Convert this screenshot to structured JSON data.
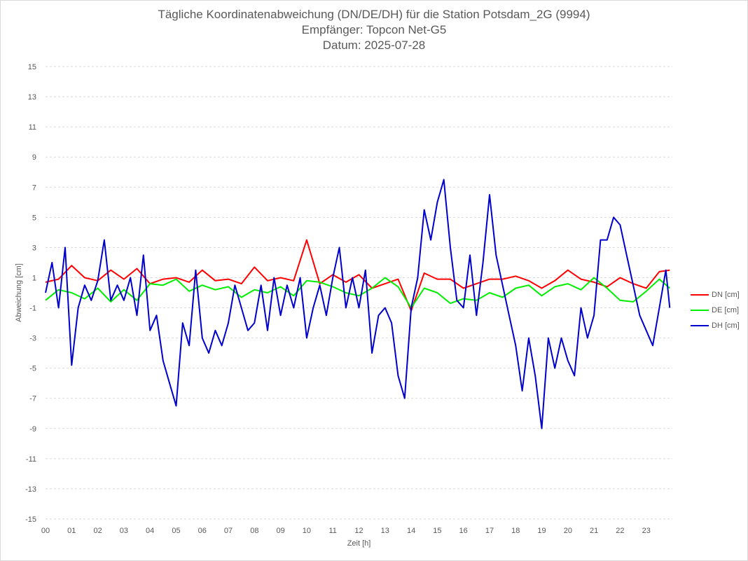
{
  "colors": {
    "DN": "#ff0000",
    "DE": "#00ee00",
    "DH": "#0000cc",
    "grid": "#d9d9d9",
    "text": "#595959"
  },
  "chart_data": {
    "type": "line",
    "title": "Tägliche Koordinatenabweichung (DN/DE/DH) für die Station Potsdam_2G (9994)",
    "subtitle": [
      "Empfänger: Topcon Net-G5",
      "Datum: 2025-07-28"
    ],
    "xlabel": "Zeit [h]",
    "ylabel": "Abweichung [cm]",
    "xlim": [
      0,
      24
    ],
    "ylim": [
      -15,
      15
    ],
    "x_ticks": [
      "00",
      "01",
      "02",
      "03",
      "04",
      "05",
      "06",
      "07",
      "08",
      "09",
      "10",
      "11",
      "12",
      "13",
      "14",
      "15",
      "16",
      "17",
      "18",
      "19",
      "20",
      "21",
      "22",
      "23"
    ],
    "y_ticks": [
      15,
      13,
      11,
      9,
      7,
      5,
      3,
      1,
      -1,
      -3,
      -5,
      -7,
      -9,
      -11,
      -13,
      -15
    ],
    "grid": true,
    "legend_position": "right",
    "series": [
      {
        "name": "DN [cm]",
        "color_key": "DN",
        "x": [
          0,
          0.5,
          1,
          1.5,
          2,
          2.5,
          3,
          3.5,
          4,
          4.5,
          5,
          5.5,
          6,
          6.5,
          7,
          7.5,
          8,
          8.5,
          9,
          9.5,
          10,
          10.5,
          11,
          11.5,
          12,
          12.5,
          13,
          13.5,
          14,
          14.5,
          15,
          15.5,
          16,
          16.5,
          17,
          17.5,
          18,
          18.5,
          19,
          19.5,
          20,
          20.5,
          21,
          21.5,
          22,
          22.5,
          23,
          23.5,
          23.9
        ],
        "values": [
          0.7,
          0.9,
          1.8,
          1.0,
          0.8,
          1.5,
          0.9,
          1.6,
          0.6,
          0.9,
          1.0,
          0.7,
          1.5,
          0.8,
          0.9,
          0.6,
          1.7,
          0.8,
          1.0,
          0.8,
          3.5,
          0.6,
          1.2,
          0.7,
          1.2,
          0.3,
          0.6,
          0.9,
          -1.2,
          1.3,
          0.9,
          0.9,
          0.3,
          0.6,
          0.9,
          0.9,
          1.1,
          0.8,
          0.3,
          0.8,
          1.5,
          0.9,
          0.7,
          0.4,
          1.0,
          0.6,
          0.3,
          1.4,
          1.5
        ]
      },
      {
        "name": "DE [cm]",
        "color_key": "DE",
        "x": [
          0,
          0.5,
          1,
          1.5,
          2,
          2.5,
          3,
          3.5,
          4,
          4.5,
          5,
          5.5,
          6,
          6.5,
          7,
          7.5,
          8,
          8.5,
          9,
          9.5,
          10,
          10.5,
          11,
          11.5,
          12,
          12.5,
          13,
          13.5,
          14,
          14.5,
          15,
          15.5,
          16,
          16.5,
          17,
          17.5,
          18,
          18.5,
          19,
          19.5,
          20,
          20.5,
          21,
          21.5,
          22,
          22.5,
          23,
          23.5,
          23.9
        ],
        "values": [
          -0.5,
          0.2,
          0.0,
          -0.4,
          0.3,
          -0.6,
          0.2,
          -0.5,
          0.6,
          0.5,
          0.9,
          0.1,
          0.5,
          0.2,
          0.4,
          -0.3,
          0.2,
          0.0,
          0.4,
          -0.2,
          0.8,
          0.7,
          0.4,
          0.0,
          -0.2,
          0.3,
          1.0,
          0.4,
          -1.0,
          0.3,
          0.0,
          -0.7,
          -0.4,
          -0.5,
          0.0,
          -0.3,
          0.3,
          0.5,
          -0.2,
          0.4,
          0.6,
          0.2,
          1.0,
          0.3,
          -0.5,
          -0.6,
          0.1,
          0.9,
          0.3
        ]
      },
      {
        "name": "DH [cm]",
        "color_key": "DH",
        "x": [
          0,
          0.25,
          0.5,
          0.75,
          1,
          1.25,
          1.5,
          1.75,
          2,
          2.25,
          2.5,
          2.75,
          3,
          3.25,
          3.5,
          3.75,
          4,
          4.25,
          4.5,
          4.75,
          5,
          5.25,
          5.5,
          5.75,
          6,
          6.25,
          6.5,
          6.75,
          7,
          7.25,
          7.5,
          7.75,
          8,
          8.25,
          8.5,
          8.75,
          9,
          9.25,
          9.5,
          9.75,
          10,
          10.25,
          10.5,
          10.75,
          11,
          11.25,
          11.5,
          11.75,
          12,
          12.25,
          12.5,
          12.75,
          13,
          13.25,
          13.5,
          13.75,
          14,
          14.25,
          14.5,
          14.75,
          15,
          15.25,
          15.5,
          15.75,
          16,
          16.25,
          16.5,
          16.75,
          17,
          17.25,
          17.5,
          17.75,
          18,
          18.25,
          18.5,
          18.75,
          19,
          19.25,
          19.5,
          19.75,
          20,
          20.25,
          20.5,
          20.75,
          21,
          21.25,
          21.5,
          21.75,
          22,
          22.25,
          22.5,
          22.75,
          23,
          23.25,
          23.5,
          23.75,
          23.9
        ],
        "values": [
          0.0,
          2.0,
          -1.0,
          3.0,
          -4.8,
          -1.0,
          0.5,
          -0.5,
          0.8,
          3.5,
          -0.5,
          0.5,
          -0.5,
          1.0,
          -1.5,
          2.5,
          -2.5,
          -1.5,
          -4.5,
          -6.0,
          -7.5,
          -2.0,
          -3.5,
          1.5,
          -3.0,
          -4.0,
          -2.5,
          -3.5,
          -2.0,
          0.5,
          -1.0,
          -2.5,
          -2.0,
          0.5,
          -2.5,
          1.0,
          -1.5,
          0.5,
          -1.0,
          1.0,
          -3.0,
          -1.0,
          0.5,
          -1.5,
          1.0,
          3.0,
          -1.0,
          1.0,
          -1.0,
          1.5,
          -4.0,
          -1.5,
          -1.0,
          -2.0,
          -5.5,
          -7.0,
          -1.0,
          1.0,
          5.5,
          3.5,
          6.0,
          7.5,
          3.0,
          -0.5,
          -1.0,
          2.5,
          -1.5,
          2.0,
          6.5,
          2.5,
          0.5,
          -1.5,
          -3.5,
          -6.5,
          -3.0,
          -5.5,
          -9.0,
          -3.0,
          -5.0,
          -3.0,
          -4.5,
          -5.5,
          -1.0,
          -3.0,
          -1.5,
          3.5,
          3.5,
          5.0,
          4.5,
          2.5,
          0.5,
          -1.5,
          -2.5,
          -3.5,
          -1.0,
          1.5,
          -1.0
        ]
      }
    ]
  }
}
